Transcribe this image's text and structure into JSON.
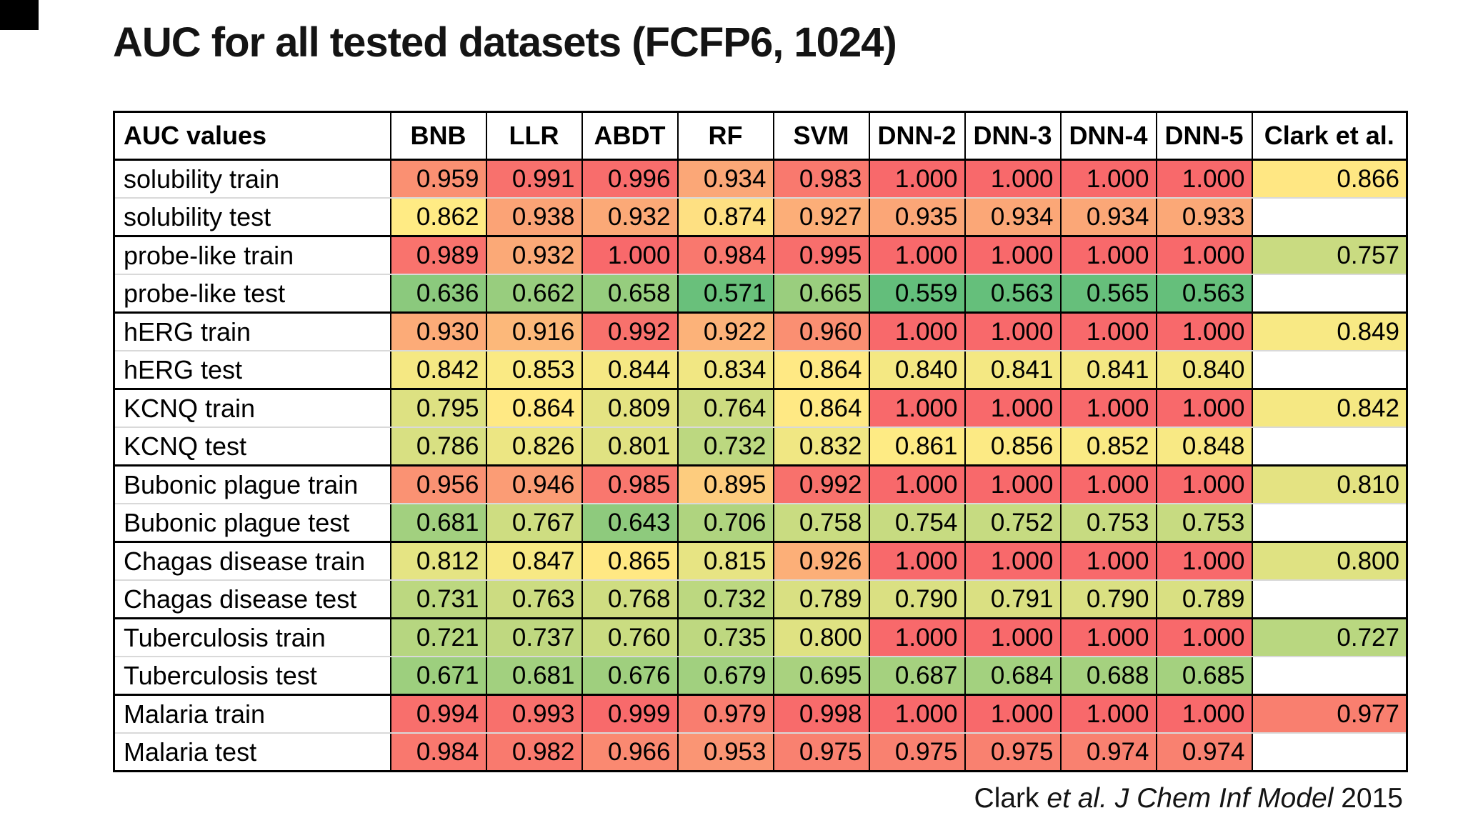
{
  "slide": {
    "title": "AUC for all tested datasets (FCFP6, 1024)",
    "citation": {
      "prefix": "Clark ",
      "italic": "et al. J Chem Inf Model",
      "suffix": " 2015"
    }
  },
  "chart_data": {
    "type": "heatmap",
    "title": "AUC for all tested datasets (FCFP6, 1024)",
    "row_header_label": "AUC values",
    "columns": [
      "BNB",
      "LLR",
      "ABDT",
      "RF",
      "SVM",
      "DNN-2",
      "DNN-3",
      "DNN-4",
      "DNN-5"
    ],
    "extra_column": "Clark et al.",
    "value_format": "3dp",
    "rows": [
      {
        "label": "solubility train",
        "values": [
          0.959,
          0.991,
          0.996,
          0.934,
          0.983,
          1.0,
          1.0,
          1.0,
          1.0
        ],
        "clark": 0.866
      },
      {
        "label": "solubility test",
        "values": [
          0.862,
          0.938,
          0.932,
          0.874,
          0.927,
          0.935,
          0.934,
          0.934,
          0.933
        ],
        "clark": null
      },
      {
        "label": "probe-like train",
        "values": [
          0.989,
          0.932,
          1.0,
          0.984,
          0.995,
          1.0,
          1.0,
          1.0,
          1.0
        ],
        "clark": 0.757
      },
      {
        "label": "probe-like test",
        "values": [
          0.636,
          0.662,
          0.658,
          0.571,
          0.665,
          0.559,
          0.563,
          0.565,
          0.563
        ],
        "clark": null
      },
      {
        "label": "hERG train",
        "values": [
          0.93,
          0.916,
          0.992,
          0.922,
          0.96,
          1.0,
          1.0,
          1.0,
          1.0
        ],
        "clark": 0.849
      },
      {
        "label": "hERG test",
        "values": [
          0.842,
          0.853,
          0.844,
          0.834,
          0.864,
          0.84,
          0.841,
          0.841,
          0.84
        ],
        "clark": null
      },
      {
        "label": "KCNQ train",
        "values": [
          0.795,
          0.864,
          0.809,
          0.764,
          0.864,
          1.0,
          1.0,
          1.0,
          1.0
        ],
        "clark": 0.842
      },
      {
        "label": "KCNQ test",
        "values": [
          0.786,
          0.826,
          0.801,
          0.732,
          0.832,
          0.861,
          0.856,
          0.852,
          0.848
        ],
        "clark": null
      },
      {
        "label": "Bubonic plague train",
        "values": [
          0.956,
          0.946,
          0.985,
          0.895,
          0.992,
          1.0,
          1.0,
          1.0,
          1.0
        ],
        "clark": 0.81
      },
      {
        "label": "Bubonic plague test",
        "values": [
          0.681,
          0.767,
          0.643,
          0.706,
          0.758,
          0.754,
          0.752,
          0.753,
          0.753
        ],
        "clark": null
      },
      {
        "label": "Chagas disease train",
        "values": [
          0.812,
          0.847,
          0.865,
          0.815,
          0.926,
          1.0,
          1.0,
          1.0,
          1.0
        ],
        "clark": 0.8
      },
      {
        "label": "Chagas disease test",
        "values": [
          0.731,
          0.763,
          0.768,
          0.732,
          0.789,
          0.79,
          0.791,
          0.79,
          0.789
        ],
        "clark": null
      },
      {
        "label": "Tuberculosis train",
        "values": [
          0.721,
          0.737,
          0.76,
          0.735,
          0.8,
          1.0,
          1.0,
          1.0,
          1.0
        ],
        "clark": 0.727
      },
      {
        "label": "Tuberculosis test",
        "values": [
          0.671,
          0.681,
          0.676,
          0.679,
          0.695,
          0.687,
          0.684,
          0.688,
          0.685
        ],
        "clark": null
      },
      {
        "label": "Malaria train",
        "values": [
          0.994,
          0.993,
          0.999,
          0.979,
          0.998,
          1.0,
          1.0,
          1.0,
          1.0
        ],
        "clark": 0.977
      },
      {
        "label": "Malaria test",
        "values": [
          0.984,
          0.982,
          0.966,
          0.953,
          0.975,
          0.975,
          0.975,
          0.974,
          0.974
        ],
        "clark": null
      }
    ],
    "color_scale": {
      "min_value": 0.559,
      "min_color": "#63BE7B",
      "mid_value": 0.862,
      "mid_color": "#FFEB84",
      "max_value": 1.0,
      "max_color": "#F8696B",
      "empty_color": "#FFFFFF"
    },
    "layout": {
      "legend": "none",
      "grid": "black cell borders, thick separators between dataset pairs"
    }
  }
}
